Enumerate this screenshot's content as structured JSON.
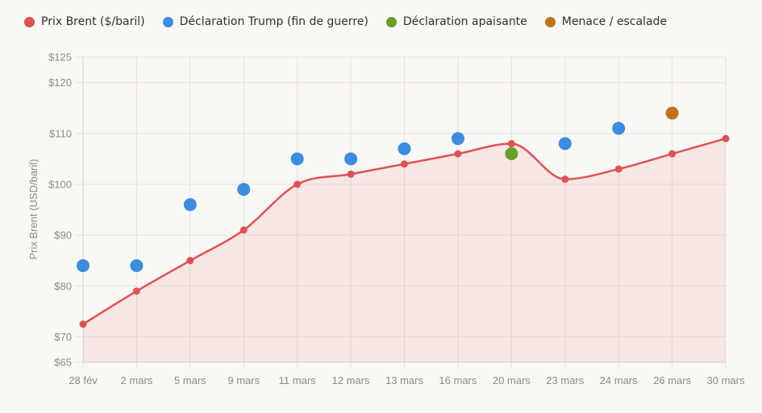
{
  "chart_data": {
    "type": "line",
    "title": "",
    "xlabel": "",
    "ylabel": "Prix Brent (USD/baril)",
    "ylim": [
      65,
      125
    ],
    "y_ticks": [
      65,
      70,
      80,
      90,
      100,
      110,
      120,
      125
    ],
    "y_tick_labels": [
      "$65",
      "$70",
      "$80",
      "$90",
      "$100",
      "$110",
      "$120",
      "$125"
    ],
    "grid": true,
    "legend_position": "top-left",
    "categories": [
      "28 fév",
      "2 mars",
      "5 mars",
      "9 mars",
      "11 mars",
      "12 mars",
      "13 mars",
      "16 mars",
      "20 mars",
      "23 mars",
      "24 mars",
      "26 mars",
      "30 mars"
    ],
    "series": [
      {
        "name": "Prix Brent ($/baril)",
        "kind": "line-area",
        "color": "#e05252",
        "values": [
          72.5,
          79,
          85,
          91,
          100,
          102,
          104,
          106,
          108,
          101,
          103,
          106,
          109
        ]
      },
      {
        "name": "Déclaration Trump (fin de guerre)",
        "kind": "scatter",
        "color": "#3b8de0",
        "values": [
          84,
          84,
          96,
          99,
          105,
          105,
          107,
          109,
          null,
          108,
          111,
          null,
          null
        ]
      },
      {
        "name": "Déclaration apaisante",
        "kind": "scatter",
        "color": "#66a027",
        "values": [
          null,
          null,
          null,
          null,
          null,
          null,
          null,
          null,
          106,
          null,
          null,
          null,
          null
        ]
      },
      {
        "name": "Menace / escalade",
        "kind": "scatter",
        "color": "#bd7418",
        "values": [
          null,
          null,
          null,
          null,
          null,
          null,
          null,
          null,
          null,
          null,
          null,
          114,
          null
        ]
      }
    ]
  }
}
